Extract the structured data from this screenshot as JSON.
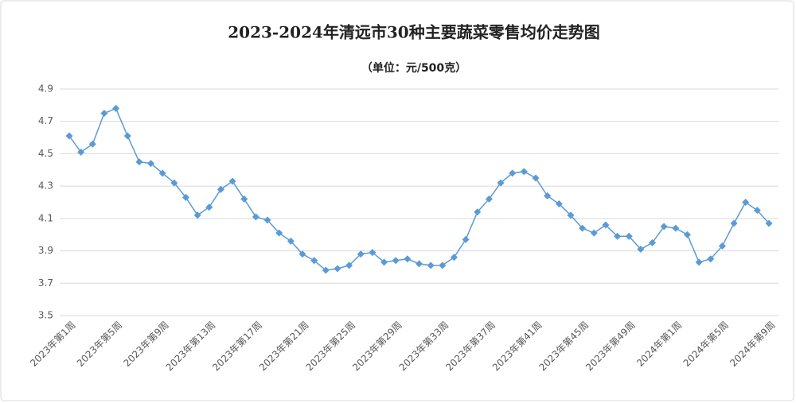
{
  "chart_data": {
    "type": "line",
    "title": "2023-2024年清远市30种主要蔬菜零售均价走势图",
    "subtitle": "（单位：元/500克）",
    "categories": [
      "2023年第1周",
      null,
      null,
      null,
      "2023年第5周",
      null,
      null,
      null,
      "2023年第9周",
      null,
      null,
      null,
      "2023年第13周",
      null,
      null,
      null,
      "2023年第17周",
      null,
      null,
      null,
      "2023年第21周",
      null,
      null,
      null,
      "2023年第25周",
      null,
      null,
      null,
      "2023年第29周",
      null,
      null,
      null,
      "2023年第33周",
      null,
      null,
      null,
      "2023年第37周",
      null,
      null,
      null,
      "2023年第41周",
      null,
      null,
      null,
      "2023年第45周",
      null,
      null,
      null,
      "2023年第49周",
      null,
      null,
      null,
      "2024年第1周",
      null,
      null,
      null,
      "2024年第5周",
      null,
      null,
      null,
      "2024年第9周"
    ],
    "series": [
      {
        "color": "#5b9bd5",
        "values": [
          4.61,
          4.51,
          4.56,
          4.75,
          4.78,
          4.61,
          4.45,
          4.44,
          4.38,
          4.32,
          4.23,
          4.12,
          4.17,
          4.28,
          4.33,
          4.22,
          4.11,
          4.09,
          4.01,
          3.96,
          3.88,
          3.84,
          3.78,
          3.79,
          3.81,
          3.88,
          3.89,
          3.83,
          3.84,
          3.85,
          3.82,
          3.81,
          3.81,
          3.86,
          3.97,
          4.14,
          4.22,
          4.32,
          4.38,
          4.39,
          4.35,
          4.24,
          4.19,
          4.12,
          4.04,
          4.01,
          4.06,
          3.99,
          3.99,
          3.91,
          3.95,
          4.05,
          4.04,
          4.0,
          3.83,
          3.85,
          3.93,
          4.07,
          4.2,
          4.15,
          4.07
        ]
      }
    ],
    "ylim": [
      3.5,
      4.9
    ],
    "yticks": [
      3.5,
      3.7,
      3.9,
      4.1,
      4.3,
      4.5,
      4.7,
      4.9
    ],
    "grid": true
  }
}
